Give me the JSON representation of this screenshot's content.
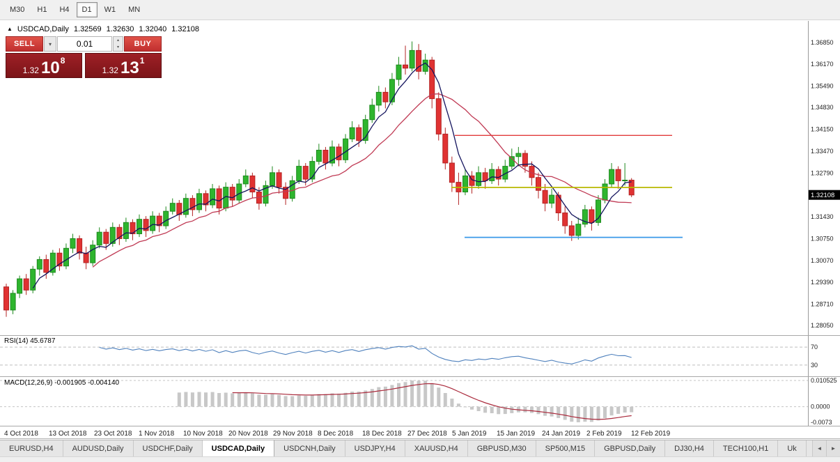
{
  "toolbar": {
    "timeframes": [
      {
        "label": "M30",
        "active": false
      },
      {
        "label": "H1",
        "active": false
      },
      {
        "label": "H4",
        "active": false
      },
      {
        "label": "D1",
        "active": true
      },
      {
        "label": "W1",
        "active": false
      },
      {
        "label": "MN",
        "active": false
      }
    ]
  },
  "chart_header": {
    "symbol": "USDCAD,Daily",
    "open": "1.32569",
    "high": "1.32630",
    "low": "1.32040",
    "close": "1.32108"
  },
  "trade_panel": {
    "sell_label": "SELL",
    "buy_label": "BUY",
    "volume": "0.01",
    "sell_price": {
      "small": "1.32",
      "big": "10",
      "sup": "8"
    },
    "buy_price": {
      "small": "1.32",
      "big": "13",
      "sup": "1"
    }
  },
  "panels": {
    "rsi_label": "RSI(14) 45.6787",
    "macd_label": "MACD(12,26,9) -0.001905 -0.004140"
  },
  "tabs": {
    "items": [
      {
        "label": "EURUSD,H4",
        "active": false
      },
      {
        "label": "AUDUSD,Daily",
        "active": false
      },
      {
        "label": "USDCHF,Daily",
        "active": false
      },
      {
        "label": "USDCAD,Daily",
        "active": true
      },
      {
        "label": "USDCNH,Daily",
        "active": false
      },
      {
        "label": "USDJPY,H4",
        "active": false
      },
      {
        "label": "XAUUSD,H4",
        "active": false
      },
      {
        "label": "GBPUSD,M30",
        "active": false
      },
      {
        "label": "SP500,M15",
        "active": false
      },
      {
        "label": "GBPUSD,Daily",
        "active": false
      },
      {
        "label": "DJ30,H4",
        "active": false
      },
      {
        "label": "TECH100,H1",
        "active": false
      },
      {
        "label": "Uk",
        "active": false
      }
    ]
  },
  "chart_data": {
    "type": "candlestick",
    "symbol": "USDCAD",
    "timeframe": "Daily",
    "ylim": [
      1.27748,
      1.37475
    ],
    "price_ticks": [
      "1.36850",
      "1.36170",
      "1.35490",
      "1.34830",
      "1.34150",
      "1.33470",
      "1.32790",
      "1.31430",
      "1.30750",
      "1.30070",
      "1.29390",
      "1.28710",
      "1.28050"
    ],
    "current_price": 1.32108,
    "current_price_label": "1.32108",
    "dates": [
      "4 Oct 2018",
      "13 Oct 2018",
      "23 Oct 2018",
      "1 Nov 2018",
      "10 Nov 2018",
      "20 Nov 2018",
      "29 Nov 2018",
      "8 Dec 2018",
      "18 Dec 2018",
      "27 Dec 2018",
      "5 Jan 2019",
      "15 Jan 2019",
      "24 Jan 2019",
      "2 Feb 2019",
      "12 Feb 2019"
    ],
    "colors": {
      "bull": "#2eb52e",
      "bull_border": "#1f8a1f",
      "bear": "#e03232",
      "bear_border": "#b32424",
      "ma_fast": "#14145e",
      "ma_slow": "#c03a54",
      "rsi": "#4f81bd",
      "macd_hist": "#c8c8c8",
      "macd_signal": "#aa2a3c"
    },
    "ma_fast_period": 5,
    "ma_slow_period": 14,
    "hlines": [
      {
        "price": 1.3396,
        "x0": 0.563,
        "x1": 0.832,
        "color": "#e23b3b",
        "width": 1.3
      },
      {
        "price": 1.3234,
        "x0": 0.559,
        "x1": 0.832,
        "color": "#b8b800",
        "width": 1.8
      },
      {
        "price": 1.3079,
        "x0": 0.575,
        "x1": 0.845,
        "color": "#3a99e8",
        "width": 1.8
      }
    ],
    "rsi_period": 14,
    "rsi_levels": [
      70,
      30
    ],
    "rsi_ticks": [
      "70",
      "30"
    ],
    "rsi_current": 45.6787,
    "macd": {
      "fast": 12,
      "slow": 26,
      "signal": 9
    },
    "macd_ticks": [
      "0.010525",
      "0.0000",
      "-0.0073"
    ],
    "candles": [
      [
        1.2925,
        1.2935,
        1.2832,
        1.2853
      ],
      [
        1.2853,
        1.2915,
        1.284,
        1.2905
      ],
      [
        1.2905,
        1.296,
        1.289,
        1.295
      ],
      [
        1.295,
        1.2965,
        1.29,
        1.2915
      ],
      [
        1.2915,
        1.299,
        1.2905,
        1.298
      ],
      [
        1.298,
        1.302,
        1.296,
        1.301
      ],
      [
        1.301,
        1.3025,
        1.295,
        1.297
      ],
      [
        1.297,
        1.304,
        1.296,
        1.303
      ],
      [
        1.303,
        1.3045,
        1.2975,
        1.299
      ],
      [
        1.299,
        1.306,
        1.298,
        1.3045
      ],
      [
        1.3045,
        1.309,
        1.303,
        1.3075
      ],
      [
        1.3075,
        1.3085,
        1.301,
        1.303
      ],
      [
        1.303,
        1.305,
        1.298,
        1.3
      ],
      [
        1.3,
        1.307,
        1.299,
        1.3055
      ],
      [
        1.3055,
        1.311,
        1.3045,
        1.3095
      ],
      [
        1.3095,
        1.3105,
        1.304,
        1.306
      ],
      [
        1.306,
        1.3125,
        1.305,
        1.311
      ],
      [
        1.311,
        1.312,
        1.3055,
        1.3075
      ],
      [
        1.3075,
        1.314,
        1.3065,
        1.3125
      ],
      [
        1.3125,
        1.3135,
        1.307,
        1.309
      ],
      [
        1.309,
        1.315,
        1.308,
        1.3135
      ],
      [
        1.3135,
        1.3145,
        1.308,
        1.31
      ],
      [
        1.31,
        1.316,
        1.309,
        1.3145
      ],
      [
        1.3145,
        1.3155,
        1.3095,
        1.3115
      ],
      [
        1.3115,
        1.3175,
        1.3105,
        1.316
      ],
      [
        1.316,
        1.32,
        1.315,
        1.3185
      ],
      [
        1.3185,
        1.3195,
        1.313,
        1.315
      ],
      [
        1.315,
        1.3215,
        1.314,
        1.32
      ],
      [
        1.32,
        1.321,
        1.3145,
        1.3165
      ],
      [
        1.3165,
        1.323,
        1.3155,
        1.3215
      ],
      [
        1.3215,
        1.3225,
        1.316,
        1.318
      ],
      [
        1.318,
        1.3245,
        1.317,
        1.323
      ],
      [
        1.323,
        1.324,
        1.315,
        1.317
      ],
      [
        1.317,
        1.325,
        1.316,
        1.3235
      ],
      [
        1.3235,
        1.3245,
        1.3175,
        1.3195
      ],
      [
        1.3195,
        1.326,
        1.3185,
        1.3245
      ],
      [
        1.3245,
        1.329,
        1.3235,
        1.327
      ],
      [
        1.327,
        1.328,
        1.32,
        1.322
      ],
      [
        1.322,
        1.3235,
        1.3165,
        1.3185
      ],
      [
        1.3185,
        1.3255,
        1.3175,
        1.324
      ],
      [
        1.324,
        1.33,
        1.323,
        1.328
      ],
      [
        1.328,
        1.329,
        1.3215,
        1.3235
      ],
      [
        1.3235,
        1.325,
        1.318,
        1.32
      ],
      [
        1.32,
        1.327,
        1.319,
        1.3255
      ],
      [
        1.3255,
        1.332,
        1.3245,
        1.33
      ],
      [
        1.33,
        1.331,
        1.324,
        1.326
      ],
      [
        1.326,
        1.333,
        1.325,
        1.3315
      ],
      [
        1.3315,
        1.337,
        1.3305,
        1.335
      ],
      [
        1.335,
        1.336,
        1.329,
        1.331
      ],
      [
        1.331,
        1.338,
        1.33,
        1.336
      ],
      [
        1.336,
        1.337,
        1.33,
        1.332
      ],
      [
        1.332,
        1.34,
        1.331,
        1.3385
      ],
      [
        1.3385,
        1.344,
        1.3375,
        1.342
      ],
      [
        1.342,
        1.343,
        1.336,
        1.338
      ],
      [
        1.338,
        1.346,
        1.337,
        1.3445
      ],
      [
        1.3445,
        1.351,
        1.3435,
        1.349
      ],
      [
        1.349,
        1.355,
        1.347,
        1.353
      ],
      [
        1.353,
        1.3545,
        1.348,
        1.35
      ],
      [
        1.35,
        1.359,
        1.349,
        1.357
      ],
      [
        1.357,
        1.364,
        1.355,
        1.3615
      ],
      [
        1.3615,
        1.3675,
        1.3585,
        1.3605
      ],
      [
        1.3605,
        1.3688,
        1.3595,
        1.366
      ],
      [
        1.366,
        1.368,
        1.357,
        1.3595
      ],
      [
        1.3595,
        1.365,
        1.3585,
        1.363
      ],
      [
        1.363,
        1.364,
        1.348,
        1.351
      ],
      [
        1.351,
        1.353,
        1.338,
        1.34
      ],
      [
        1.34,
        1.342,
        1.329,
        1.331
      ],
      [
        1.331,
        1.333,
        1.322,
        1.325
      ],
      [
        1.325,
        1.328,
        1.318,
        1.322
      ],
      [
        1.322,
        1.329,
        1.321,
        1.327
      ],
      [
        1.327,
        1.3285,
        1.3215,
        1.324
      ],
      [
        1.324,
        1.33,
        1.323,
        1.328
      ],
      [
        1.328,
        1.3295,
        1.323,
        1.3255
      ],
      [
        1.3255,
        1.331,
        1.3245,
        1.329
      ],
      [
        1.329,
        1.33,
        1.324,
        1.326
      ],
      [
        1.326,
        1.332,
        1.325,
        1.33
      ],
      [
        1.33,
        1.3355,
        1.329,
        1.333
      ],
      [
        1.333,
        1.336,
        1.33,
        1.334
      ],
      [
        1.334,
        1.335,
        1.328,
        1.33
      ],
      [
        1.33,
        1.3315,
        1.324,
        1.3265
      ],
      [
        1.3265,
        1.328,
        1.32,
        1.3225
      ],
      [
        1.3225,
        1.3245,
        1.316,
        1.3185
      ],
      [
        1.3185,
        1.323,
        1.317,
        1.321
      ],
      [
        1.321,
        1.322,
        1.313,
        1.3155
      ],
      [
        1.3155,
        1.3175,
        1.309,
        1.3115
      ],
      [
        1.3115,
        1.313,
        1.3068,
        1.3085
      ],
      [
        1.3085,
        1.314,
        1.3072,
        1.312
      ],
      [
        1.312,
        1.318,
        1.311,
        1.3165
      ],
      [
        1.3165,
        1.3175,
        1.31,
        1.3125
      ],
      [
        1.3125,
        1.321,
        1.3115,
        1.3195
      ],
      [
        1.3195,
        1.326,
        1.3185,
        1.3245
      ],
      [
        1.3245,
        1.331,
        1.3235,
        1.329
      ],
      [
        1.329,
        1.33,
        1.323,
        1.3255
      ],
      [
        1.3255,
        1.331,
        1.324,
        1.32569
      ],
      [
        1.32569,
        1.3263,
        1.3204,
        1.32108
      ]
    ]
  }
}
